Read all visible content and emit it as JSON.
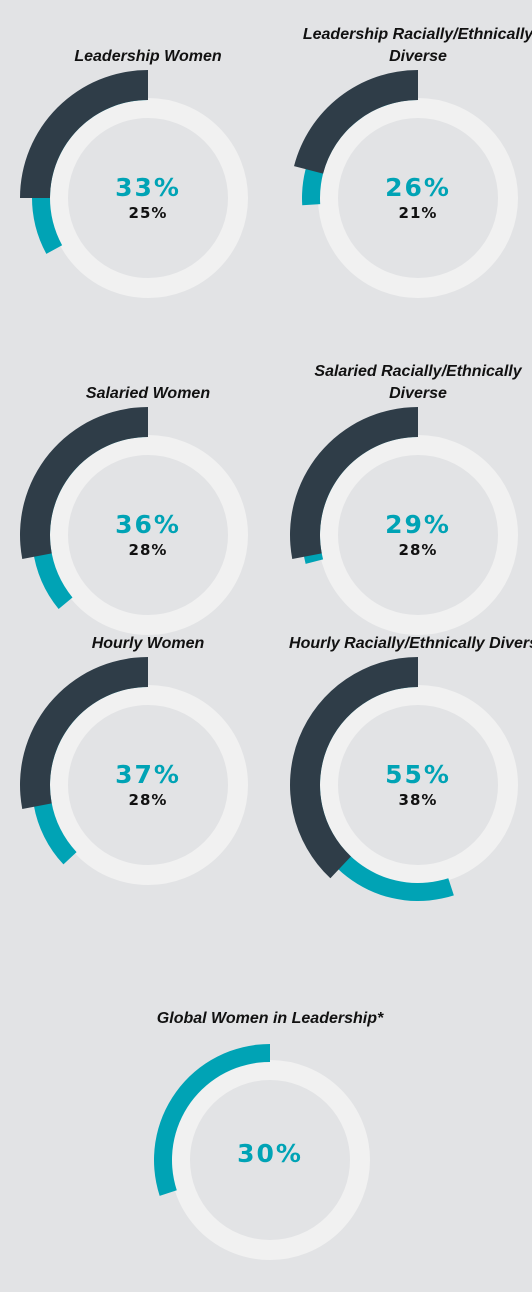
{
  "chart_data": [
    {
      "type": "donut",
      "title": "Leadership Women",
      "values": [
        33,
        25
      ],
      "value_labels": [
        "33%",
        "25%"
      ],
      "colors": [
        "#00a3b5",
        "#2f3d48"
      ]
    },
    {
      "type": "donut",
      "title": "Leadership Racially/Ethnically Diverse",
      "values": [
        26,
        21
      ],
      "value_labels": [
        "26%",
        "21%"
      ],
      "colors": [
        "#00a3b5",
        "#2f3d48"
      ]
    },
    {
      "type": "donut",
      "title": "Salaried Women",
      "values": [
        36,
        28
      ],
      "value_labels": [
        "36%",
        "28%"
      ],
      "colors": [
        "#00a3b5",
        "#2f3d48"
      ]
    },
    {
      "type": "donut",
      "title": "Salaried Racially/Ethnically Diverse",
      "values": [
        29,
        28
      ],
      "value_labels": [
        "29%",
        "28%"
      ],
      "colors": [
        "#00a3b5",
        "#2f3d48"
      ]
    },
    {
      "type": "donut",
      "title": "Hourly Women",
      "values": [
        37,
        28
      ],
      "value_labels": [
        "37%",
        "28%"
      ],
      "colors": [
        "#00a3b5",
        "#2f3d48"
      ]
    },
    {
      "type": "donut",
      "title": "Hourly Racially/Ethnically Diverse",
      "values": [
        55,
        38
      ],
      "value_labels": [
        "55%",
        "38%"
      ],
      "colors": [
        "#00a3b5",
        "#2f3d48"
      ]
    },
    {
      "type": "donut",
      "title": "Global Women in Leadership*",
      "values": [
        30
      ],
      "value_labels": [
        "30%"
      ],
      "colors": [
        "#00a3b5"
      ]
    }
  ]
}
